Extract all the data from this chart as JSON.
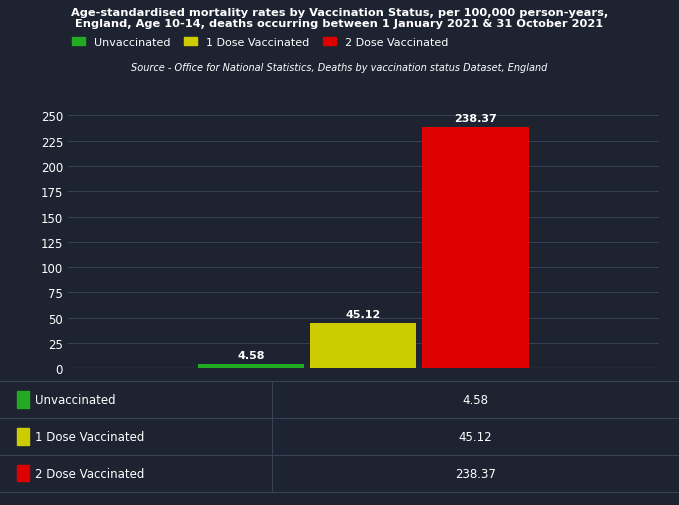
{
  "title_line1": "Age-standardised mortality rates by Vaccination Status, per 100,000 person-years,",
  "title_line2": "England, Age 10-14, deaths occurring between 1 January 2021 & 31 October 2021",
  "subtitle": "Source - Office for National Statistics, Deaths by vaccination status Dataset, England",
  "category": "Age 10-14",
  "series": [
    {
      "label": "Unvaccinated",
      "value": 4.58,
      "color": "#22aa22"
    },
    {
      "label": "1 Dose Vaccinated",
      "value": 45.12,
      "color": "#cccc00"
    },
    {
      "label": "2 Dose Vaccinated",
      "value": 238.37,
      "color": "#dd0000"
    }
  ],
  "background_color": "#1e2332",
  "text_color": "#ffffff",
  "grid_color": "#3a4055",
  "ylim": [
    0,
    250
  ],
  "yticks": [
    0,
    25,
    50,
    75,
    100,
    125,
    150,
    175,
    200,
    225,
    250
  ],
  "bar_width": 0.18,
  "bar_gap": 0.19,
  "figsize": [
    6.79,
    5.06
  ],
  "dpi": 100
}
